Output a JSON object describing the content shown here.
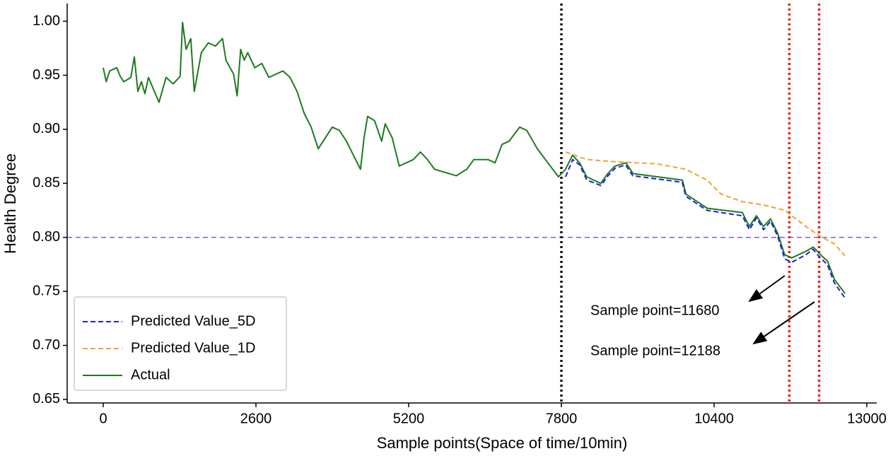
{
  "chart_data": {
    "type": "line",
    "xlabel": "Sample points(Space of time/10min)",
    "ylabel": "Health Degree",
    "xlim": [
      -614,
      13168
    ],
    "ylim": [
      0.6467,
      1.0164
    ],
    "xticks": [
      0,
      2600,
      5200,
      7800,
      10400,
      13000
    ],
    "yticks": [
      0.65,
      {
        "value": 0.7,
        "label": "0.70"
      },
      0.75,
      {
        "value": 0.8,
        "label": "0.80"
      },
      0.85,
      {
        "value": 0.9,
        "label": "0.90"
      },
      0.95,
      {
        "value": 1.0,
        "label": "1.00"
      }
    ],
    "legend": "lower left",
    "series": [
      {
        "name": "Predicted Value_5D",
        "color": "#1f1fd0",
        "style": "dashed",
        "x": [
          7872,
          7992,
          8113,
          8233,
          8474,
          8594,
          8714,
          8895,
          9015,
          9437,
          9858,
          9918,
          10279,
          10881,
          11001,
          11122,
          11242,
          11362,
          11483,
          11603,
          11723,
          11964,
          12085,
          12205,
          12326,
          12446,
          12626
        ],
        "values": [
          0.856,
          0.872,
          0.867,
          0.853,
          0.848,
          0.857,
          0.864,
          0.867,
          0.857,
          0.854,
          0.851,
          0.838,
          0.825,
          0.82,
          0.807,
          0.818,
          0.807,
          0.815,
          0.801,
          0.78,
          0.777,
          0.784,
          0.789,
          0.781,
          0.775,
          0.758,
          0.744
        ]
      },
      {
        "name": "Predicted Value_1D",
        "color": "#f5a030",
        "style": "dashed",
        "x": [
          7872,
          8233,
          8714,
          9437,
          9918,
          10279,
          10520,
          10881,
          11242,
          11603,
          11964,
          12205,
          12446,
          12626
        ],
        "values": [
          0.879,
          0.872,
          0.87,
          0.868,
          0.863,
          0.853,
          0.84,
          0.833,
          0.83,
          0.825,
          0.81,
          0.801,
          0.794,
          0.783
        ]
      },
      {
        "name": "Actual",
        "color": "#1e7a1e",
        "style": "solid",
        "x": [
          0,
          50,
          110,
          230,
          290,
          350,
          470,
          530,
          590,
          650,
          710,
          770,
          950,
          1070,
          1190,
          1310,
          1350,
          1410,
          1490,
          1550,
          1670,
          1790,
          1910,
          2030,
          2090,
          2220,
          2280,
          2340,
          2400,
          2460,
          2580,
          2700,
          2820,
          2940,
          3060,
          3180,
          3300,
          3420,
          3540,
          3660,
          3780,
          3900,
          4020,
          4140,
          4260,
          4380,
          4440,
          4500,
          4620,
          4740,
          4800,
          4920,
          5040,
          5280,
          5400,
          5520,
          5640,
          6010,
          6190,
          6310,
          6550,
          6670,
          6790,
          6910,
          7090,
          7210,
          7390,
          7570,
          7750,
          7870,
          7990,
          8110,
          8230,
          8470,
          8590,
          8710,
          8900,
          9020,
          9440,
          9860,
          9920,
          10280,
          10880,
          11000,
          11120,
          11240,
          11360,
          11480,
          11600,
          11720,
          11960,
          12090,
          12210,
          12330,
          12450,
          12630
        ],
        "values": [
          0.957,
          0.944,
          0.954,
          0.957,
          0.949,
          0.944,
          0.948,
          0.967,
          0.935,
          0.944,
          0.933,
          0.948,
          0.925,
          0.948,
          0.942,
          0.949,
          0.999,
          0.974,
          0.984,
          0.935,
          0.971,
          0.98,
          0.977,
          0.984,
          0.964,
          0.951,
          0.931,
          0.974,
          0.964,
          0.971,
          0.957,
          0.961,
          0.948,
          0.951,
          0.954,
          0.948,
          0.935,
          0.915,
          0.902,
          0.882,
          0.892,
          0.902,
          0.899,
          0.889,
          0.876,
          0.863,
          0.892,
          0.912,
          0.908,
          0.889,
          0.905,
          0.892,
          0.866,
          0.872,
          0.879,
          0.872,
          0.863,
          0.857,
          0.863,
          0.872,
          0.872,
          0.869,
          0.886,
          0.889,
          0.902,
          0.899,
          0.882,
          0.869,
          0.856,
          0.863,
          0.876,
          0.869,
          0.856,
          0.85,
          0.859,
          0.866,
          0.869,
          0.859,
          0.856,
          0.853,
          0.84,
          0.827,
          0.823,
          0.81,
          0.82,
          0.81,
          0.817,
          0.804,
          0.784,
          0.781,
          0.787,
          0.791,
          0.784,
          0.778,
          0.761,
          0.748
        ]
      }
    ],
    "hlines": [
      {
        "value": 0.8,
        "color": "#8a5cc8"
      }
    ],
    "vlines": [
      {
        "value": 7800,
        "color": "#111111"
      },
      {
        "value": 11680,
        "color": "#e8201c"
      },
      {
        "value": 12188,
        "color": "#e8201c"
      }
    ],
    "annotations": [
      "Sample point=11680",
      "Sample point=12188"
    ]
  }
}
